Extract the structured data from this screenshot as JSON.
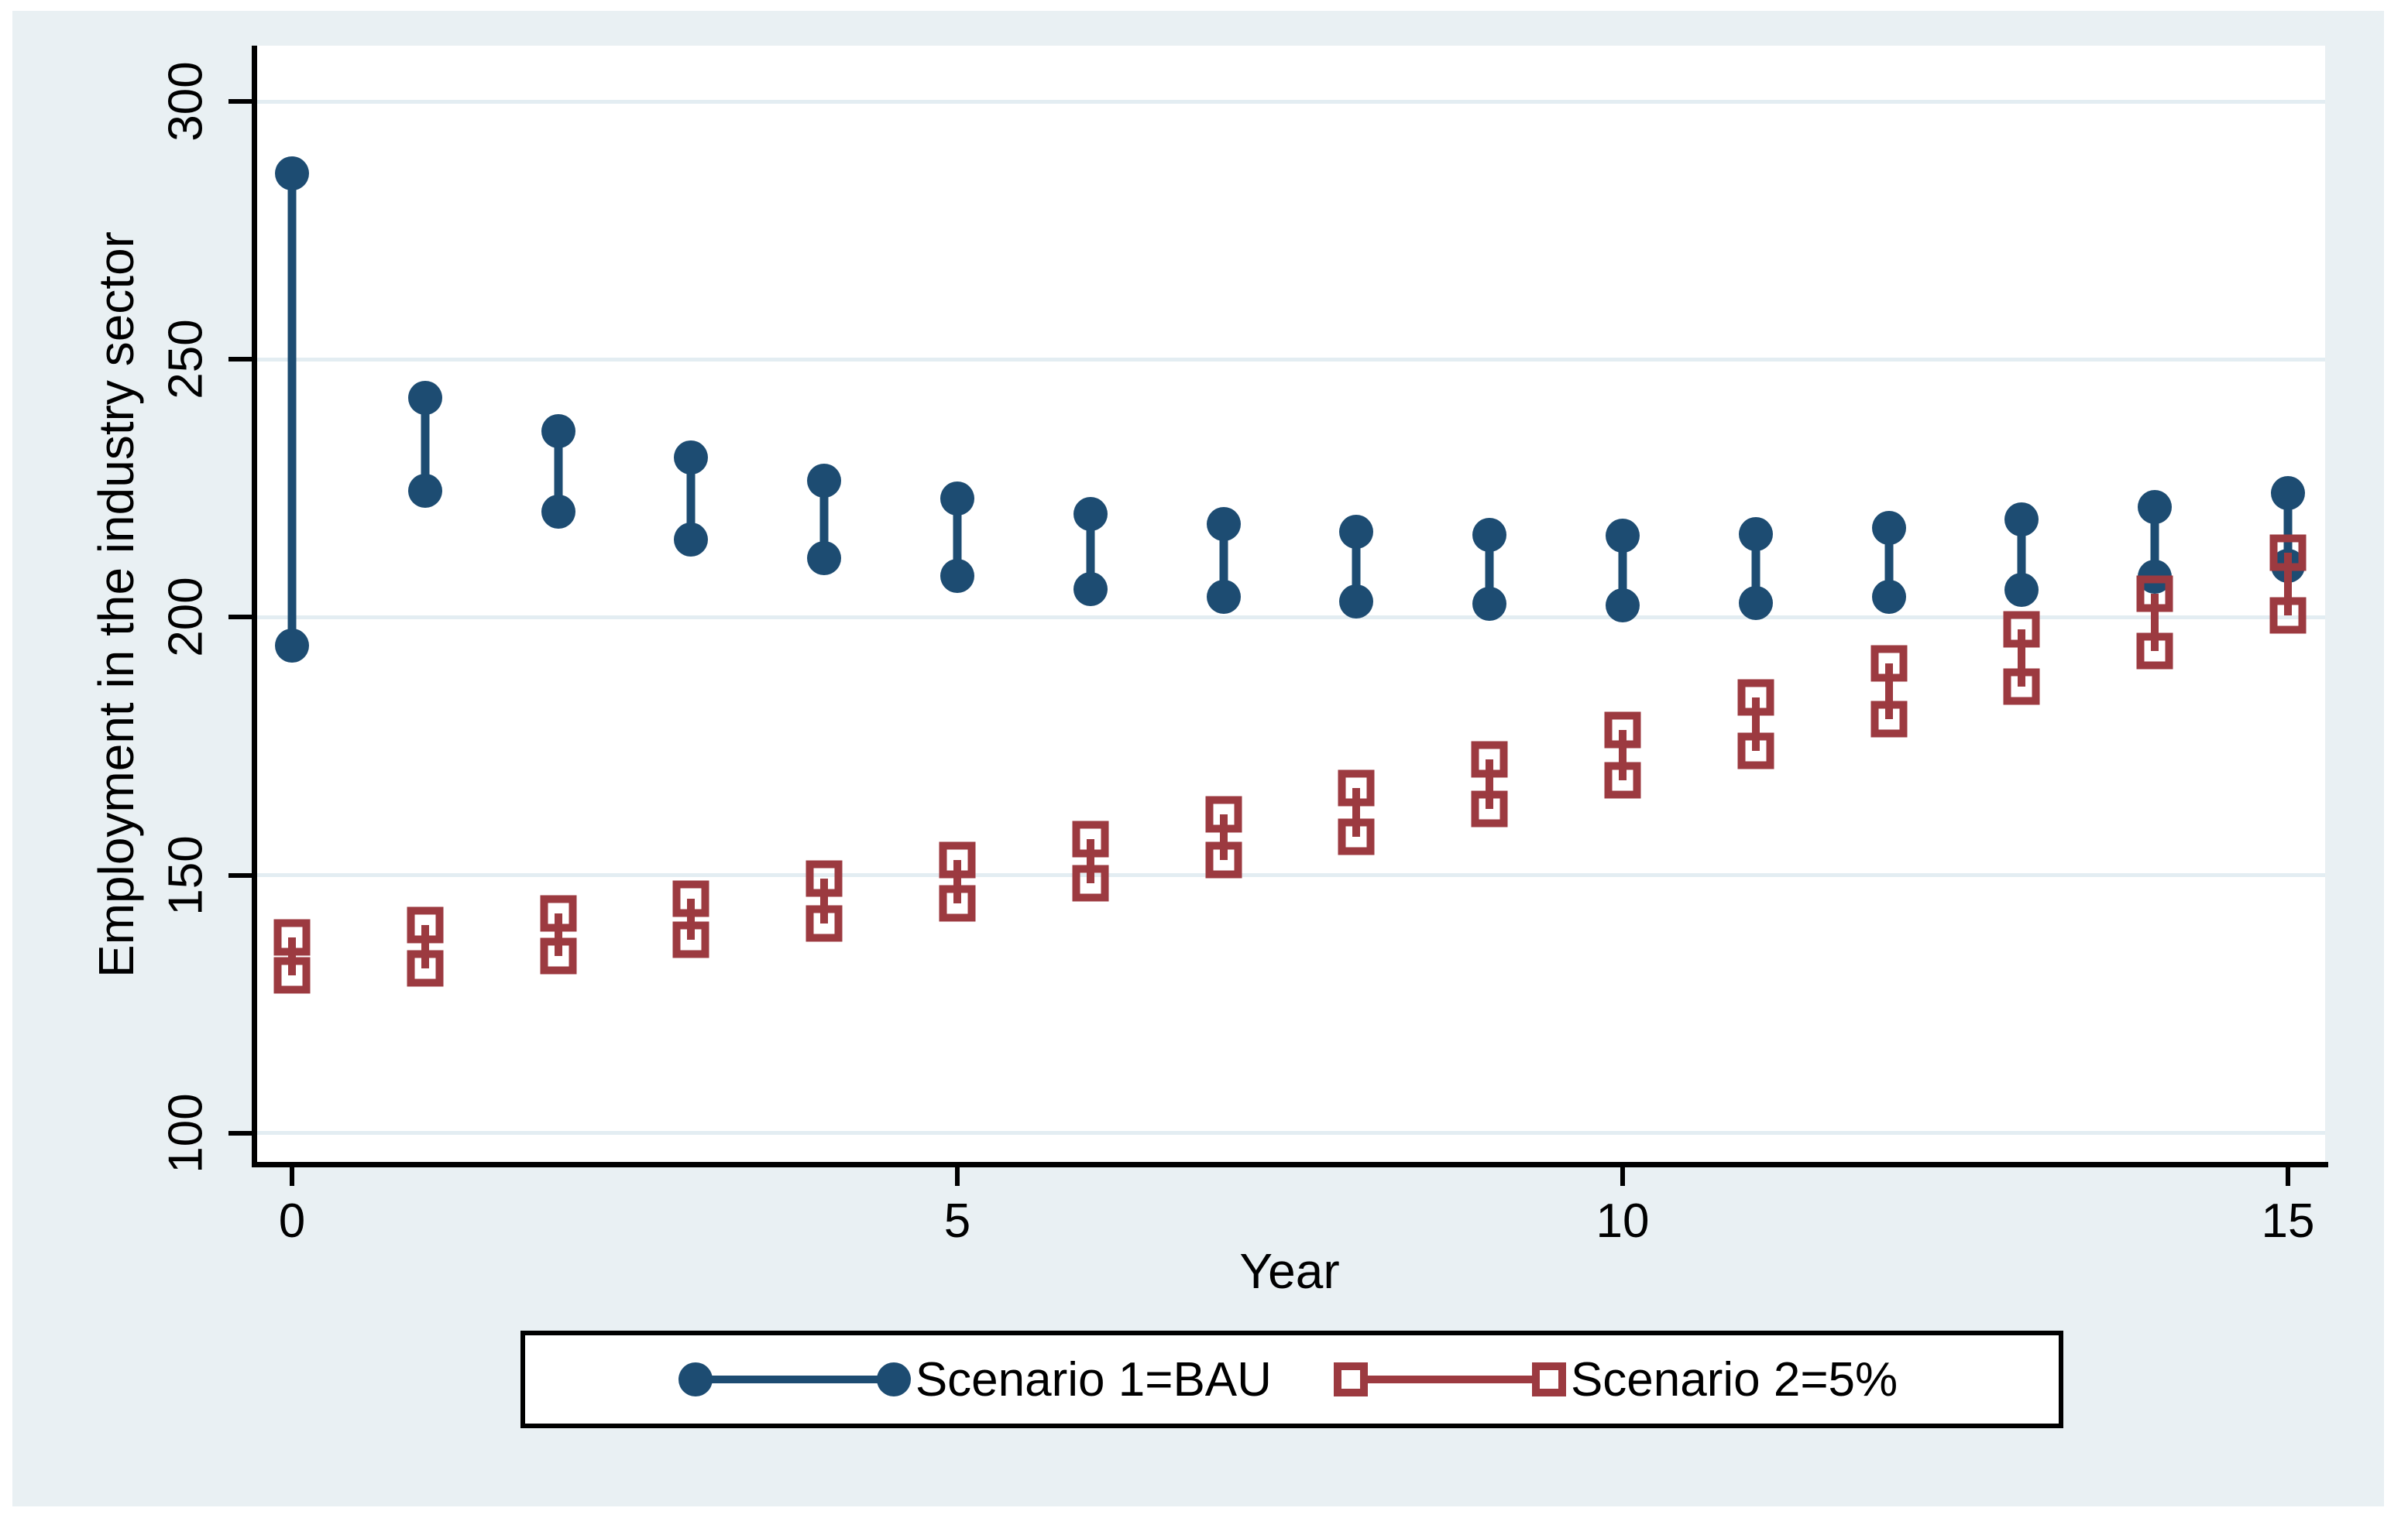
{
  "figure": {
    "background_color": "#e9f0f3",
    "plot_background_color": "#ffffff",
    "gridline_color": "#e3edf2",
    "axis_color": "#000000"
  },
  "legend": {
    "items": [
      {
        "label": "Scenario 1=BAU",
        "marker": "filled-circle",
        "color": "#1d4c72"
      },
      {
        "label": "Scenario 2=5%",
        "marker": "hollow-square",
        "color": "#9c3a40"
      }
    ]
  },
  "chart_data": {
    "type": "scatter",
    "subtype": "range-dumbbell",
    "title": "",
    "xlabel": "Year",
    "ylabel": "Employment in the industry sector",
    "x": [
      0,
      1,
      2,
      3,
      4,
      5,
      6,
      7,
      8,
      9,
      10,
      11,
      12,
      13,
      14,
      15
    ],
    "xticks": [
      0,
      5,
      10,
      15
    ],
    "yticks": [
      100,
      150,
      200,
      250,
      300
    ],
    "ylim": [
      93,
      311
    ],
    "xlim": [
      -0.28,
      15.28
    ],
    "grid": true,
    "legend_position": "bottom-outside",
    "series": [
      {
        "name": "Scenario 1=BAU",
        "color": "#1d4c72",
        "marker": "filled-circle",
        "high": [
          286,
          242.5,
          236,
          231,
          226.5,
          223,
          220,
          218,
          216.5,
          216,
          215.8,
          216.1,
          217.3,
          219,
          221.3,
          224
        ],
        "low": [
          194.5,
          224.5,
          220.5,
          215,
          211.5,
          208,
          205.5,
          204,
          203,
          202.6,
          202.3,
          202.8,
          204,
          205.3,
          207.8,
          210
        ]
      },
      {
        "name": "Scenario 2=5%",
        "color": "#9c3a40",
        "marker": "hollow-square",
        "high": [
          138,
          140.4,
          142.6,
          145.5,
          149.3,
          153,
          157,
          161.8,
          166.9,
          172.4,
          178.2,
          184.5,
          191,
          197.7,
          204.6,
          212.5
        ],
        "low": [
          130.6,
          132,
          134.4,
          137.5,
          140.7,
          144.5,
          148.4,
          152.9,
          157.5,
          162.8,
          168.4,
          174.1,
          180.2,
          186.6,
          193.4,
          200.3
        ]
      }
    ]
  }
}
